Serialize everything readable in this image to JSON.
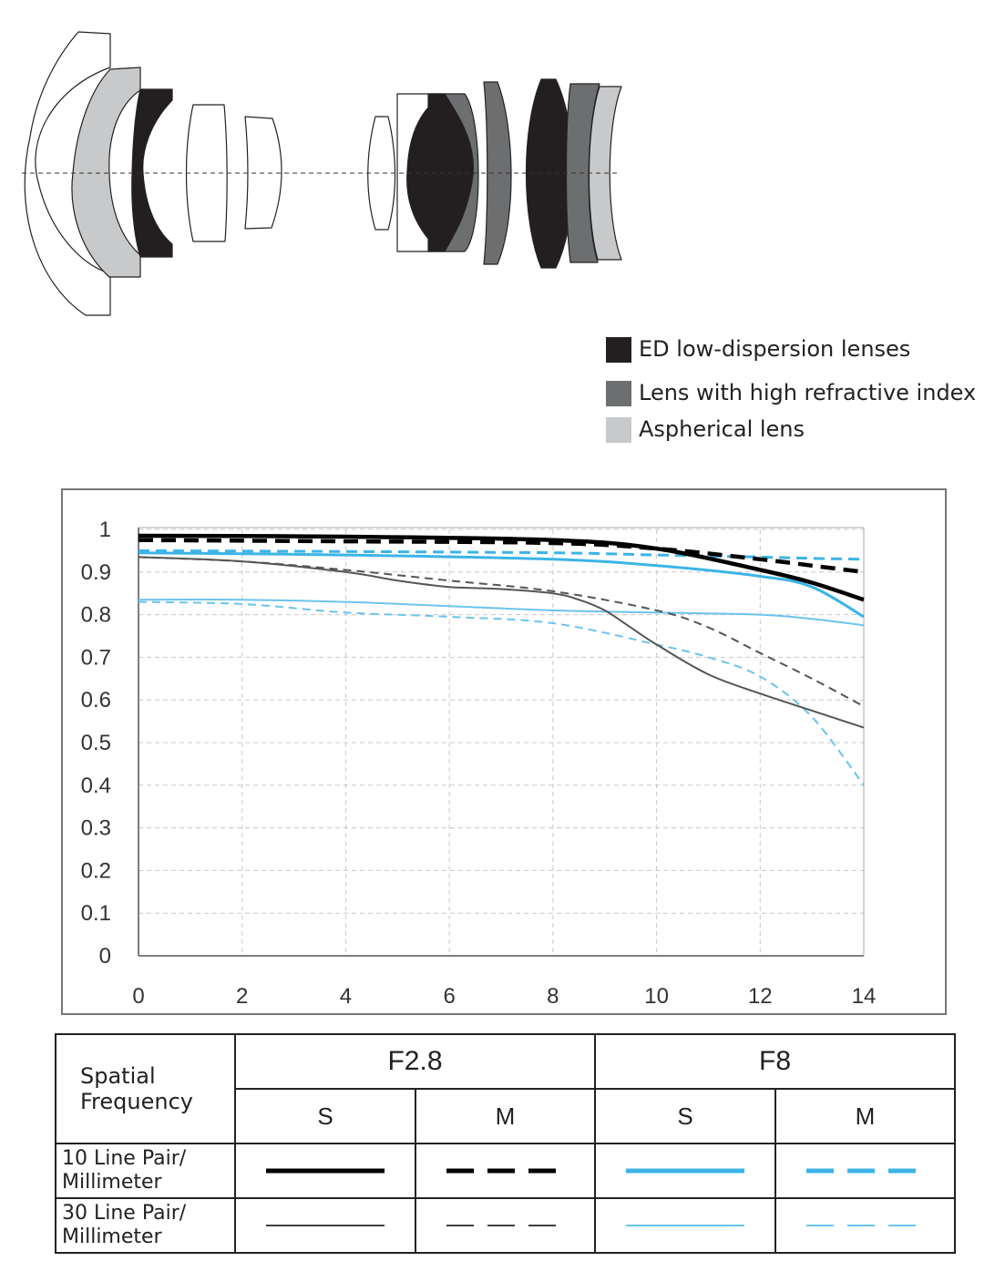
{
  "lens_diagram": {
    "colors": {
      "ed": "#231f20",
      "high_refractive": "#6d6e70",
      "aspherical": "#c8c9ca",
      "standard": "#ffffff",
      "outline": "#222222"
    }
  },
  "legend": [
    {
      "label": "ED low-dispersion lenses",
      "color": "#231f20"
    },
    {
      "label": "Lens with high refractive index",
      "color": "#6d6e70"
    },
    {
      "label": "Aspherical lens",
      "color": "#c8c9ca"
    }
  ],
  "chart_data": {
    "type": "line",
    "title": "",
    "xlabel": "",
    "ylabel": "",
    "xlim": [
      0,
      14
    ],
    "ylim": [
      0,
      1
    ],
    "x_ticks": [
      "0",
      "2",
      "4",
      "6",
      "8",
      "10",
      "12",
      "14"
    ],
    "y_ticks": [
      "0",
      "0.1",
      "0.2",
      "0.3",
      "0.4",
      "0.5",
      "0.6",
      "0.7",
      "0.8",
      "0.9",
      "1"
    ],
    "grid": true,
    "series": [
      {
        "color": "#000000",
        "width": 4.5,
        "dash": "",
        "points": [
          [
            0,
            0.985
          ],
          [
            4,
            0.983
          ],
          [
            8,
            0.975
          ],
          [
            10,
            0.955
          ],
          [
            12,
            0.905
          ],
          [
            13,
            0.875
          ],
          [
            14,
            0.835
          ]
        ]
      },
      {
        "color": "#000000",
        "width": 4.5,
        "dash": "16 9",
        "points": [
          [
            0,
            0.975
          ],
          [
            4,
            0.972
          ],
          [
            8,
            0.968
          ],
          [
            10,
            0.955
          ],
          [
            12,
            0.93
          ],
          [
            13,
            0.915
          ],
          [
            14,
            0.9
          ]
        ]
      },
      {
        "color": "#3cb4e6",
        "width": 3,
        "dash": "",
        "points": [
          [
            0,
            0.945
          ],
          [
            4,
            0.94
          ],
          [
            8,
            0.93
          ],
          [
            10,
            0.915
          ],
          [
            12,
            0.89
          ],
          [
            13,
            0.865
          ],
          [
            14,
            0.795
          ]
        ]
      },
      {
        "color": "#3cb4e6",
        "width": 3,
        "dash": "12 7",
        "points": [
          [
            0,
            0.95
          ],
          [
            4,
            0.948
          ],
          [
            8,
            0.945
          ],
          [
            10,
            0.94
          ],
          [
            12,
            0.935
          ],
          [
            13,
            0.932
          ],
          [
            14,
            0.93
          ]
        ]
      },
      {
        "color": "#555555",
        "width": 2,
        "dash": "",
        "points": [
          [
            0,
            0.935
          ],
          [
            2,
            0.925
          ],
          [
            4,
            0.9
          ],
          [
            5,
            0.88
          ],
          [
            6,
            0.865
          ],
          [
            7,
            0.86
          ],
          [
            8,
            0.85
          ],
          [
            8.5,
            0.835
          ],
          [
            9,
            0.81
          ],
          [
            9.5,
            0.77
          ],
          [
            10,
            0.73
          ],
          [
            11,
            0.66
          ],
          [
            12,
            0.615
          ],
          [
            13,
            0.575
          ],
          [
            14,
            0.535
          ]
        ]
      },
      {
        "color": "#555555",
        "width": 2,
        "dash": "9 6",
        "points": [
          [
            0,
            0.935
          ],
          [
            2,
            0.925
          ],
          [
            4,
            0.905
          ],
          [
            6,
            0.88
          ],
          [
            8,
            0.855
          ],
          [
            10,
            0.81
          ],
          [
            11,
            0.77
          ],
          [
            12,
            0.71
          ],
          [
            13,
            0.65
          ],
          [
            14,
            0.585
          ]
        ]
      },
      {
        "color": "#6cc4ec",
        "width": 2,
        "dash": "",
        "points": [
          [
            0,
            0.835
          ],
          [
            2,
            0.835
          ],
          [
            4,
            0.83
          ],
          [
            6,
            0.82
          ],
          [
            8,
            0.81
          ],
          [
            10,
            0.805
          ],
          [
            12,
            0.8
          ],
          [
            13,
            0.79
          ],
          [
            14,
            0.775
          ]
        ]
      },
      {
        "color": "#6cc4ec",
        "width": 2,
        "dash": "9 6",
        "points": [
          [
            0,
            0.83
          ],
          [
            2,
            0.825
          ],
          [
            4,
            0.805
          ],
          [
            6,
            0.795
          ],
          [
            8,
            0.78
          ],
          [
            10,
            0.73
          ],
          [
            11,
            0.7
          ],
          [
            12,
            0.655
          ],
          [
            13,
            0.56
          ],
          [
            14,
            0.4
          ]
        ]
      }
    ]
  },
  "key_table": {
    "corner_label": "Spatial Frequency",
    "apertures": [
      "F2.8",
      "F8"
    ],
    "sub_headers": [
      "S",
      "M",
      "S",
      "M"
    ],
    "rows": [
      {
        "label": "10 Line Pair/ Millimeter",
        "swatches": [
          {
            "color": "#000000",
            "width": 5,
            "dash": ""
          },
          {
            "color": "#000000",
            "width": 5,
            "dash": "30 15"
          },
          {
            "color": "#3cb4e6",
            "width": 5,
            "dash": ""
          },
          {
            "color": "#3cb4e6",
            "width": 5,
            "dash": "30 15"
          }
        ]
      },
      {
        "label": "30 Line Pair/ Millimeter",
        "swatches": [
          {
            "color": "#000000",
            "width": 1.5,
            "dash": ""
          },
          {
            "color": "#000000",
            "width": 1.5,
            "dash": "30 15"
          },
          {
            "color": "#3cb4e6",
            "width": 1.5,
            "dash": ""
          },
          {
            "color": "#3cb4e6",
            "width": 1.5,
            "dash": "30 15"
          }
        ]
      }
    ]
  }
}
